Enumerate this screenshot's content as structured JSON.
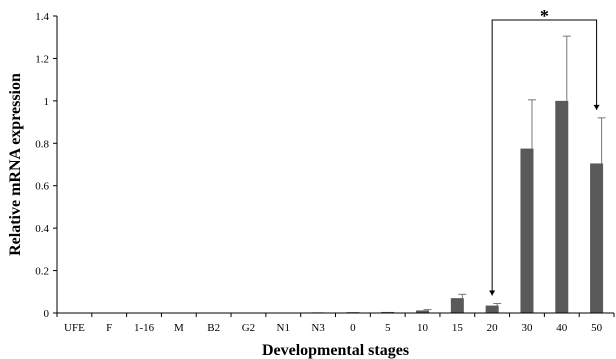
{
  "chart_data": {
    "type": "bar",
    "title": "",
    "xlabel": "Developmental stages",
    "ylabel": "Relative mRNA expression",
    "ylim": [
      0,
      1.4
    ],
    "yticks": [
      "0",
      "0.2",
      "0.4",
      "0.6",
      "0.8",
      "1",
      "1.2",
      "1.4"
    ],
    "categories": [
      "UFE",
      "F",
      "1-16",
      "M",
      "B2",
      "G2",
      "N1",
      "N3",
      "0",
      "5",
      "10",
      "15",
      "20",
      "30",
      "40",
      "50"
    ],
    "values": [
      0,
      0,
      0,
      0,
      0,
      0,
      0,
      0.003,
      0.004,
      0.005,
      0.012,
      0.07,
      0.035,
      0.775,
      1.0,
      0.705
    ],
    "errors": [
      0,
      0,
      0,
      0,
      0,
      0,
      0,
      0,
      0,
      0,
      0.004,
      0.018,
      0.01,
      0.23,
      0.305,
      0.215
    ],
    "bar_color": "#595959",
    "significance": {
      "label": "*",
      "from": "20",
      "to": "50"
    },
    "grid": false,
    "legend": "none"
  }
}
